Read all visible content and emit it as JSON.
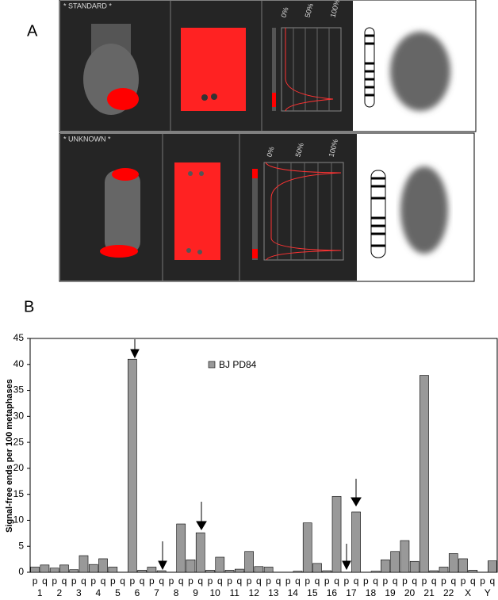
{
  "panel_a": {
    "label": "A",
    "rows": [
      {
        "title": "* STANDARD *",
        "axis_labels": [
          "0%",
          "50%",
          "100%"
        ]
      },
      {
        "title": "* UNKNOWN *",
        "axis_labels": [
          "0%",
          "50%",
          "100%"
        ]
      }
    ]
  },
  "chart_data": {
    "type": "bar",
    "panel_label": "B",
    "y_label": "Signal-free ends per 100 metaphases",
    "categories": [
      "p",
      "q",
      "p",
      "q",
      "p",
      "q",
      "p",
      "q",
      "p",
      "q",
      "p",
      "q",
      "p",
      "q",
      "p",
      "q",
      "p",
      "q",
      "p",
      "q",
      "p",
      "q",
      "p",
      "q",
      "p",
      "q",
      "p",
      "q",
      "p",
      "q",
      "p",
      "q",
      "p",
      "q",
      "p",
      "q",
      "p",
      "q",
      "p",
      "q",
      "p",
      "q",
      "p",
      "q",
      "p",
      "q",
      "p",
      "q"
    ],
    "groups": [
      "1",
      "2",
      "3",
      "4",
      "5",
      "6",
      "7",
      "8",
      "9",
      "10",
      "11",
      "12",
      "13",
      "14",
      "15",
      "16",
      "17",
      "18",
      "19",
      "20",
      "21",
      "22",
      "X",
      "Y"
    ],
    "series": [
      {
        "name": "BJ PD84",
        "color": "#999999",
        "values": [
          1.0,
          1.4,
          0.8,
          1.4,
          0.5,
          3.2,
          1.5,
          2.6,
          1.0,
          0,
          41,
          0.4,
          1.0,
          0.3,
          0,
          9.3,
          2.4,
          7.6,
          0.4,
          2.9,
          0.4,
          0.6,
          4.0,
          1.1,
          1.0,
          0,
          0,
          0.2,
          9.5,
          1.7,
          0.3,
          14.6,
          0,
          11.6,
          0,
          0.2,
          2.4,
          4.0,
          6.1,
          2.1,
          37.9,
          0.3,
          1.0,
          3.6,
          2.6,
          0.4,
          0,
          2.2
        ]
      }
    ],
    "ylim": [
      0,
      45
    ],
    "yticks": [
      0,
      5,
      10,
      15,
      20,
      25,
      30,
      35,
      40,
      45
    ],
    "grid": false
  }
}
